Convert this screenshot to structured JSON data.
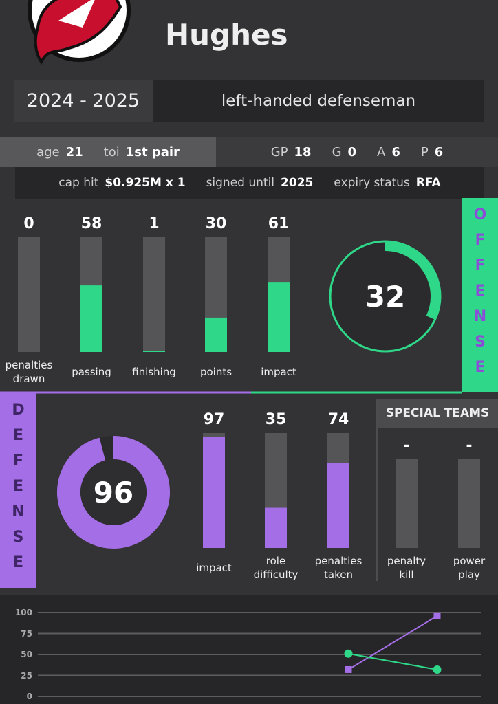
{
  "header": {
    "name": "Hughes",
    "season": "2024 - 2025",
    "role": "left-handed defenseman"
  },
  "usage": [
    {
      "label": "age",
      "value": 21
    },
    {
      "label": "toi",
      "value": "1st pair"
    }
  ],
  "production": [
    {
      "label": "GP",
      "value": 18
    },
    {
      "label": "G",
      "value": 0
    },
    {
      "label": "A",
      "value": 6
    },
    {
      "label": "P",
      "value": 6
    }
  ],
  "contract": [
    {
      "label": "cap hit",
      "value": "$0.925M x 1"
    },
    {
      "label": "signed until",
      "value": 2025
    },
    {
      "label": "expiry status",
      "value": "RFA"
    }
  ],
  "ylim": [
    0,
    100
  ],
  "offense": {
    "title": "OFFENSE",
    "score": 32,
    "bars": [
      {
        "label": "penalties drawn",
        "value": 0
      },
      {
        "label": "passing",
        "value": 58
      },
      {
        "label": "finishing",
        "value": 1
      },
      {
        "label": "points",
        "value": 30
      },
      {
        "label": "impact",
        "value": 61
      }
    ]
  },
  "defense": {
    "title": "DEFENSE",
    "score": 96,
    "bars": [
      {
        "label": "impact",
        "value": 97
      },
      {
        "label": "role difficulty",
        "value": 35
      },
      {
        "label": "penalties taken",
        "value": 74
      }
    ]
  },
  "special_teams": {
    "title": "SPECIAL TEAMS",
    "bars": [
      {
        "label": "penalty kill",
        "value": "-"
      },
      {
        "label": "power play",
        "value": "-"
      }
    ]
  },
  "chart_data": {
    "type": "line",
    "categories": [
      null,
      null,
      null,
      null,
      null
    ],
    "series": [
      {
        "color": "#a46ee6",
        "marker": "square",
        "values": [
          null,
          null,
          null,
          32,
          96
        ]
      },
      {
        "color": "#2fd889",
        "marker": "circle",
        "values": [
          null,
          null,
          null,
          51,
          32
        ]
      }
    ],
    "ylim": [
      0,
      100
    ],
    "yticks": [
      0,
      25,
      50,
      75,
      100
    ],
    "grid": true
  }
}
